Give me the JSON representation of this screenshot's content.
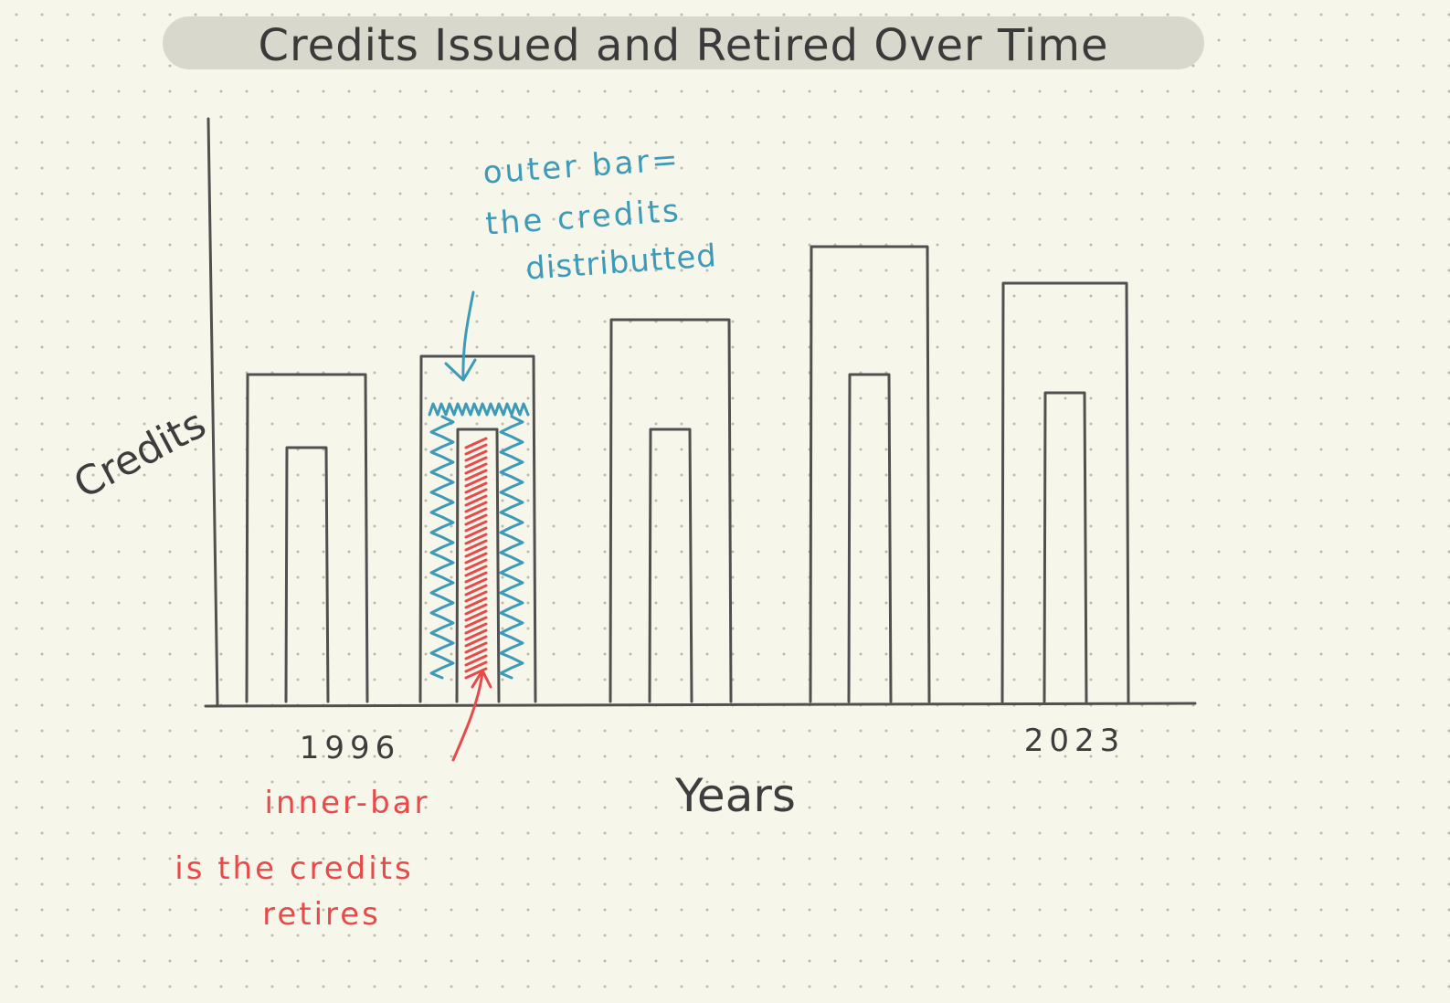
{
  "chart_data": {
    "type": "bar",
    "title": "Credits Issued and Retired Over Time",
    "xlabel": "Years",
    "ylabel": "Credits",
    "x_tick_labels": [
      {
        "bar": 0,
        "label": "1996"
      },
      {
        "bar": 4,
        "label": "2023"
      }
    ],
    "series": [
      {
        "values": [
          9,
          9.5,
          10.5,
          12.5,
          11.5
        ]
      },
      {
        "values": [
          7,
          7.5,
          7.5,
          9,
          8.5
        ]
      }
    ],
    "ylim": [
      0,
      16
    ],
    "grid": false,
    "highlight_bar": 1,
    "annotations": {
      "outer": [
        "outer bar=",
        "the credits",
        "distributted"
      ],
      "inner": [
        "inner-bar",
        "is the credits",
        "retires"
      ]
    },
    "colors": {
      "outer_annotation": "#3d9ab8",
      "inner_annotation": "#e84a4a",
      "ink": "#505050"
    }
  }
}
